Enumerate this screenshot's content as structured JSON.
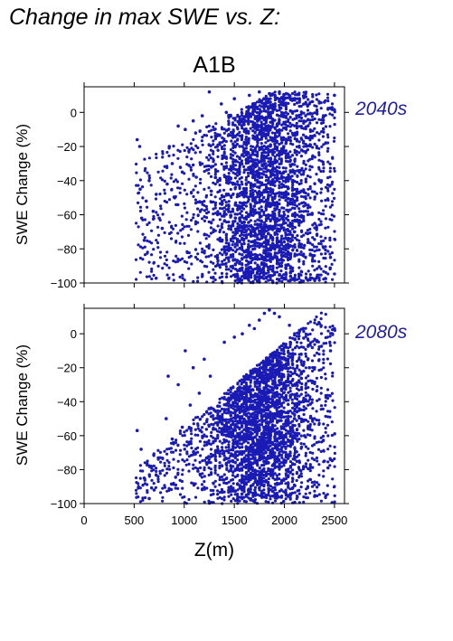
{
  "figure_title": "Change in max SWE vs. Z:",
  "scenario": "A1B",
  "colors": {
    "points": "#1a1ab4",
    "period_label": "#1f1fa0"
  },
  "chart_data": [
    {
      "type": "scatter",
      "period": "2040s",
      "ylabel": "SWE Change (%)",
      "xlabel": "",
      "xlim": [
        0,
        2600
      ],
      "ylim": [
        -100,
        15
      ],
      "yticks": [
        0,
        -20,
        -40,
        -60,
        -80,
        -100
      ],
      "xticks": [
        0,
        500,
        1000,
        1500,
        2000,
        2500
      ],
      "x_tick_labels_shown": false,
      "sampled_points": [
        [
          530,
          -16
        ],
        [
          555,
          -20
        ],
        [
          560,
          -45
        ],
        [
          575,
          -62
        ],
        [
          600,
          -75
        ],
        [
          620,
          -52
        ],
        [
          650,
          -40
        ],
        [
          690,
          -58
        ],
        [
          720,
          -48
        ],
        [
          750,
          -62
        ],
        [
          780,
          -68
        ],
        [
          830,
          -42
        ],
        [
          850,
          -20
        ],
        [
          880,
          -30
        ],
        [
          905,
          -50
        ],
        [
          940,
          -8
        ],
        [
          980,
          -35
        ],
        [
          1010,
          -10
        ],
        [
          1050,
          -22
        ],
        [
          1090,
          -5
        ],
        [
          1120,
          -38
        ],
        [
          1180,
          -2
        ],
        [
          1250,
          12
        ],
        [
          1300,
          -10
        ],
        [
          1370,
          5
        ],
        [
          1420,
          0
        ],
        [
          1500,
          8
        ],
        [
          1580,
          -20
        ],
        [
          1650,
          10
        ],
        [
          1700,
          -55
        ],
        [
          1750,
          12
        ],
        [
          1800,
          -90
        ],
        [
          1850,
          11
        ],
        [
          1900,
          -95
        ],
        [
          1950,
          12
        ],
        [
          2000,
          -60
        ],
        [
          2050,
          10
        ],
        [
          2100,
          -70
        ],
        [
          2150,
          8
        ],
        [
          2200,
          -78
        ],
        [
          2250,
          5
        ],
        [
          2350,
          -40
        ],
        [
          2400,
          6
        ],
        [
          2460,
          -85
        ],
        [
          2500,
          10
        ]
      ]
    },
    {
      "type": "scatter",
      "period": "2080s",
      "ylabel": "SWE Change (%)",
      "xlabel": "Z(m)",
      "xlim": [
        0,
        2600
      ],
      "ylim": [
        -100,
        15
      ],
      "yticks": [
        0,
        -20,
        -40,
        -60,
        -80,
        -100
      ],
      "xticks": [
        0,
        500,
        1000,
        1500,
        2000,
        2500
      ],
      "x_tick_labels": [
        "0",
        "500",
        "1000",
        "1500",
        "2000",
        "2500"
      ],
      "sampled_points": [
        [
          530,
          -57
        ],
        [
          570,
          -68
        ],
        [
          600,
          -85
        ],
        [
          650,
          -97
        ],
        [
          700,
          -92
        ],
        [
          820,
          -50
        ],
        [
          840,
          -25
        ],
        [
          880,
          -62
        ],
        [
          940,
          -30
        ],
        [
          980,
          -55
        ],
        [
          1010,
          -10
        ],
        [
          1060,
          -42
        ],
        [
          1090,
          -20
        ],
        [
          1150,
          -35
        ],
        [
          1200,
          -15
        ],
        [
          1260,
          -25
        ],
        [
          1300,
          -45
        ],
        [
          1400,
          -5
        ],
        [
          1500,
          -2
        ],
        [
          1580,
          0
        ],
        [
          1650,
          5
        ],
        [
          1700,
          3
        ],
        [
          1750,
          8
        ],
        [
          1800,
          12
        ],
        [
          1850,
          14
        ],
        [
          1900,
          12
        ],
        [
          1950,
          10
        ],
        [
          2000,
          -30
        ],
        [
          2050,
          5
        ],
        [
          2100,
          -50
        ],
        [
          2150,
          2
        ],
        [
          2200,
          -60
        ],
        [
          2250,
          -20
        ],
        [
          2350,
          6
        ],
        [
          2400,
          -75
        ],
        [
          2460,
          -10
        ],
        [
          2500,
          3
        ]
      ]
    }
  ]
}
